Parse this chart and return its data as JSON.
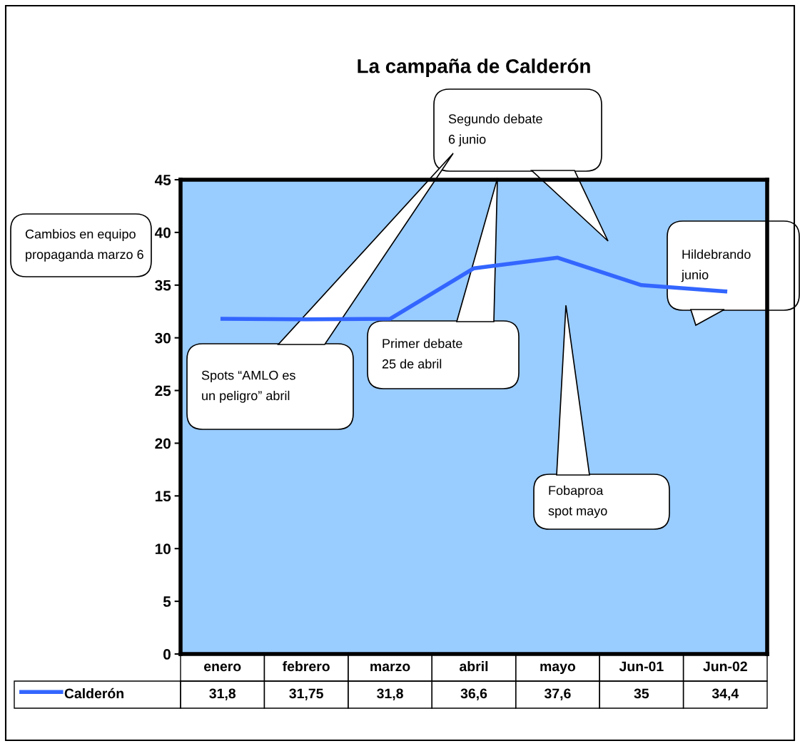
{
  "chart_data": {
    "type": "line",
    "title": "La campaña de Calderón",
    "categories": [
      "enero",
      "febrero",
      "marzo",
      "abril",
      "mayo",
      "Jun-01",
      "Jun-02"
    ],
    "series": [
      {
        "name": "Calderón",
        "color": "#3366ff",
        "values": [
          31.8,
          31.75,
          31.8,
          36.6,
          37.6,
          35,
          34.4
        ],
        "value_labels": [
          "31,8",
          "31,75",
          "31,8",
          "36,6",
          "37,6",
          "35",
          "34,4"
        ]
      }
    ],
    "ylim": [
      0,
      45
    ],
    "yticks": [
      0,
      5,
      10,
      15,
      20,
      25,
      30,
      35,
      40,
      45
    ],
    "grid": false,
    "annotations": [
      "Segundo debate\n6 junio",
      "Primer debate\n25 de abril",
      "Hildebrando\njunio",
      "Fobaproa\nspot mayo",
      "Cambios en equipo\npropaganda marzo 6",
      "Spots “AMLO es\nun peligro” abril"
    ]
  }
}
